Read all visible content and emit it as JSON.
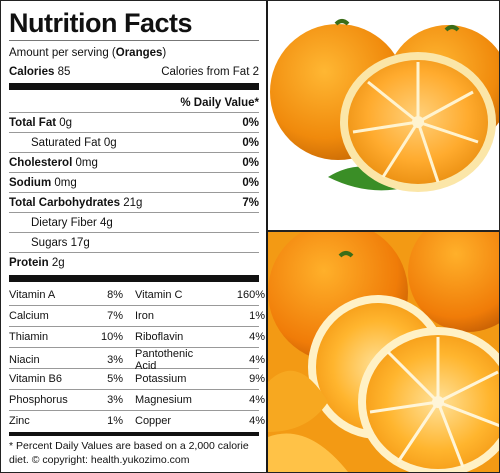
{
  "title": "Nutrition Facts",
  "serving": {
    "prefix": "Amount per serving (",
    "item": "Oranges",
    "suffix": ")"
  },
  "calories": {
    "label": "Calories",
    "value": "85",
    "fat_label": "Calories from Fat",
    "fat_value": "2"
  },
  "daily_value_header": "% Daily Value*",
  "nutrients": [
    {
      "label": "Total Fat",
      "amount": "0g",
      "dv": "0%"
    },
    {
      "label": "Saturated Fat",
      "amount": "0g",
      "dv": "0%"
    },
    {
      "label": "Cholesterol",
      "amount": "0mg",
      "dv": "0%"
    },
    {
      "label": "Sodium",
      "amount": "0mg",
      "dv": "0%"
    },
    {
      "label": "Total Carbohydrates",
      "amount": "21g",
      "dv": "7%"
    },
    {
      "label": "Dietary Fiber",
      "amount": "4g"
    },
    {
      "label": "Sugars",
      "amount": "17g"
    },
    {
      "label": "Protein",
      "amount": "2g"
    }
  ],
  "vitamins": [
    [
      "Vitamin A",
      "8%",
      "Vitamin C",
      "160%"
    ],
    [
      "Calcium",
      "7%",
      "Iron",
      "1%"
    ],
    [
      "Thiamin",
      "10%",
      "Riboflavin",
      "4%"
    ],
    [
      "Niacin",
      "3%",
      "Pantothenic Acid",
      "4%"
    ],
    [
      "Vitamin B6",
      "5%",
      "Potassium",
      "9%"
    ],
    [
      "Phosphorus",
      "3%",
      "Magnesium",
      "4%"
    ],
    [
      "Zinc",
      "1%",
      "Copper",
      "4%"
    ]
  ],
  "footnote": "* Percent Daily Values are based on a 2,000 calorie diet. © copyright: health.yukozimo.com"
}
